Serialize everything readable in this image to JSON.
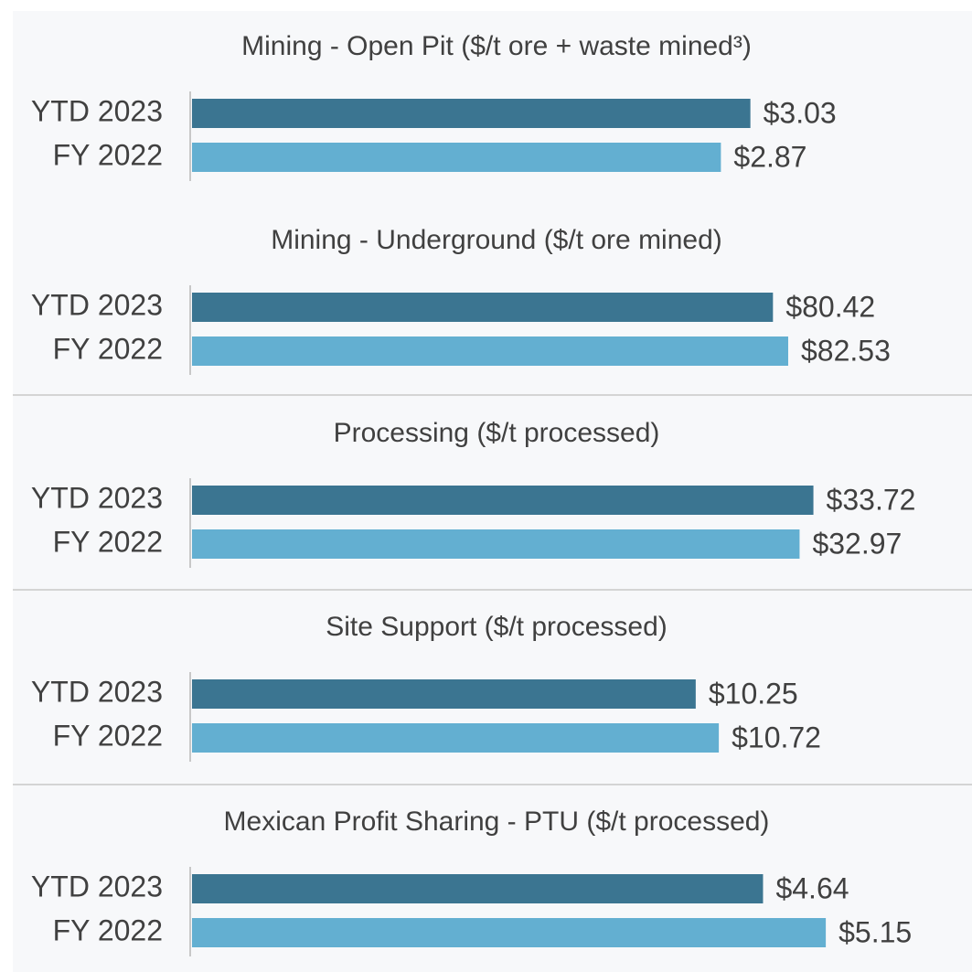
{
  "chart_data": [
    {
      "type": "bar",
      "orientation": "horizontal",
      "title": "Mining - Open Pit ($/t ore + waste mined³)",
      "categories": [
        "YTD 2023",
        "FY 2022"
      ],
      "values": [
        3.03,
        2.87
      ],
      "value_labels": [
        "$3.03",
        "$2.87"
      ],
      "colors": [
        "#3b7591",
        "#63afd1"
      ],
      "xlim": [
        0,
        3.92
      ]
    },
    {
      "type": "bar",
      "orientation": "horizontal",
      "title": "Mining - Underground ($/t ore mined)",
      "categories": [
        "YTD 2023",
        "FY 2022"
      ],
      "values": [
        80.42,
        82.53
      ],
      "value_labels": [
        "$80.42",
        "$82.53"
      ],
      "colors": [
        "#3b7591",
        "#63afd1"
      ],
      "xlim": [
        0,
        100
      ]
    },
    {
      "type": "bar",
      "orientation": "horizontal",
      "title": "Processing ($/t processed)",
      "categories": [
        "YTD 2023",
        "FY 2022"
      ],
      "values": [
        33.72,
        32.97
      ],
      "value_labels": [
        "$33.72",
        "$32.97"
      ],
      "colors": [
        "#3b7591",
        "#63afd1"
      ],
      "xlim": [
        0,
        39.2
      ]
    },
    {
      "type": "bar",
      "orientation": "horizontal",
      "title": "Site Support ($/t processed)",
      "categories": [
        "YTD 2023",
        "FY 2022"
      ],
      "values": [
        10.25,
        10.72
      ],
      "value_labels": [
        "$10.25",
        "$10.72"
      ],
      "colors": [
        "#3b7591",
        "#63afd1"
      ],
      "xlim": [
        0,
        14.7
      ]
    },
    {
      "type": "bar",
      "orientation": "horizontal",
      "title": "Mexican Profit Sharing - PTU ($/t processed)",
      "categories": [
        "YTD 2023",
        "FY 2022"
      ],
      "values": [
        4.64,
        5.15
      ],
      "value_labels": [
        "$4.64",
        "$5.15"
      ],
      "colors": [
        "#3b7591",
        "#63afd1"
      ],
      "xlim": [
        0,
        5.87
      ]
    }
  ]
}
